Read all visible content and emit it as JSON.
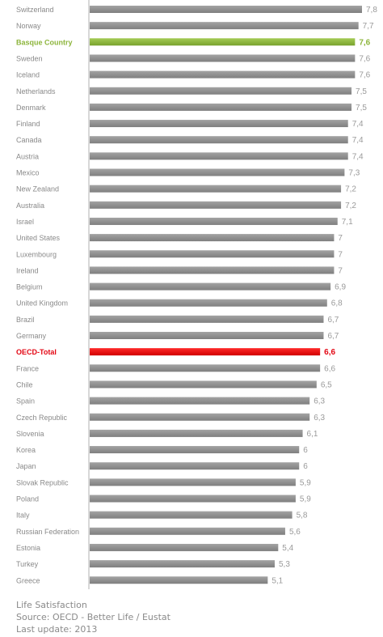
{
  "chart_data": {
    "type": "bar",
    "orientation": "horizontal",
    "categories": [
      "Switzerland",
      "Norway",
      "Basque Country",
      "Sweden",
      "Iceland",
      "Netherlands",
      "Denmark",
      "Finland",
      "Canada",
      "Austria",
      "Mexico",
      "New Zealand",
      "Australia",
      "Israel",
      "United States",
      "Luxembourg",
      "Ireland",
      "Belgium",
      "United Kingdom",
      "Brazil",
      "Germany",
      "OECD-Total",
      "France",
      "Chile",
      "Spain",
      "Czech Republic",
      "Slovenia",
      "Korea",
      "Japan",
      "Slovak Republic",
      "Poland",
      "Italy",
      "Russian Federation",
      "Estonia",
      "Turkey",
      "Greece"
    ],
    "values": [
      7.8,
      7.7,
      7.6,
      7.6,
      7.6,
      7.5,
      7.5,
      7.4,
      7.4,
      7.4,
      7.3,
      7.2,
      7.2,
      7.1,
      7,
      7,
      7,
      6.9,
      6.8,
      6.7,
      6.7,
      6.6,
      6.6,
      6.5,
      6.3,
      6.3,
      6.1,
      6,
      6,
      5.9,
      5.9,
      5.8,
      5.6,
      5.4,
      5.3,
      5.1
    ],
    "value_labels": [
      "7,8",
      "7,7",
      "7,6",
      "7,6",
      "7,6",
      "7,5",
      "7,5",
      "7,4",
      "7,4",
      "7,4",
      "7,3",
      "7,2",
      "7,2",
      "7,1",
      "7",
      "7",
      "7",
      "6,9",
      "6,8",
      "6,7",
      "6,7",
      "6,6",
      "6,6",
      "6,5",
      "6,3",
      "6,3",
      "6,1",
      "6",
      "6",
      "5,9",
      "5,9",
      "5,8",
      "5,6",
      "5,4",
      "5,3",
      "5,1"
    ],
    "highlights": {
      "Basque Country": "#8db53c",
      "OECD-Total": "#e30613"
    },
    "default_bar_color": "#8a8a8a",
    "axis_color": "#b0b0b0",
    "label_color": "#8a8a8a",
    "grid": false,
    "legend": "none"
  },
  "footer": {
    "line1": "Life Satisfaction",
    "line2": "Source: OECD - Better Life / Eustat",
    "line3": "Last update: 2013"
  }
}
